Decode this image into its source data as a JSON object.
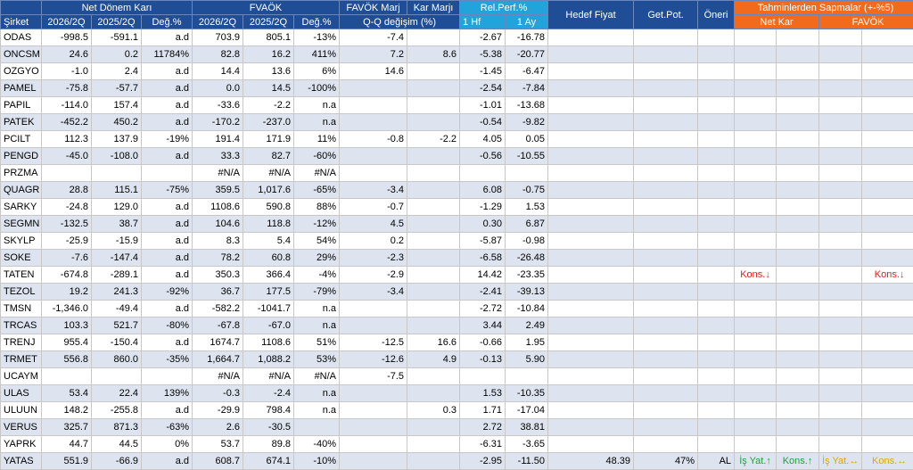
{
  "headers": {
    "sirket": "Şirket",
    "net_donem_kari": "Net Dönem Karı",
    "favok": "FVAÖK",
    "favok_marj": "FAVÖK Marj",
    "kar_marji": "Kar Marjı",
    "rel_perf": "Rel.Perf.%",
    "hedef_fiyat": "Hedef Fiyat",
    "get_pot": "Get.Pot.",
    "oneri": "Öneri",
    "tahmin": "Tahminlerden Sapmalar (+-%5)",
    "sub_net_kar": "Net Kar",
    "sub_favok": "FAVÖK",
    "c_2026": "2026/2Q",
    "c_2025": "2025/2Q",
    "c_deg": "Değ.%",
    "c_qq": "Q-Q değişim (%)",
    "c_1hf": "1 Hf",
    "c_1ay": "1 Ay"
  },
  "rows": [
    {
      "name": "ODAS",
      "n1": "-998.5",
      "n2": "-591.1",
      "nd": "a.d",
      "f1": "703.9",
      "f2": "805.1",
      "fd": "-13%",
      "fm": "-7.4",
      "km": "",
      "h": "-2.67",
      "a": "-16.78",
      "hf": "",
      "gp": "",
      "on": "",
      "t1": "",
      "t2": "",
      "t3": "",
      "t4": ""
    },
    {
      "name": "ONCSM",
      "n1": "24.6",
      "n2": "0.2",
      "nd": "11784%",
      "f1": "82.8",
      "f2": "16.2",
      "fd": "411%",
      "fm": "7.2",
      "km": "8.6",
      "h": "-5.38",
      "a": "-20.77",
      "hf": "",
      "gp": "",
      "on": "",
      "t1": "",
      "t2": "",
      "t3": "",
      "t4": ""
    },
    {
      "name": "OZGYO",
      "n1": "-1.0",
      "n2": "2.4",
      "nd": "a.d",
      "f1": "14.4",
      "f2": "13.6",
      "fd": "6%",
      "fm": "14.6",
      "km": "",
      "h": "-1.45",
      "a": "-6.47",
      "hf": "",
      "gp": "",
      "on": "",
      "t1": "",
      "t2": "",
      "t3": "",
      "t4": ""
    },
    {
      "name": "PAMEL",
      "n1": "-75.8",
      "n2": "-57.7",
      "nd": "a.d",
      "f1": "0.0",
      "f2": "14.5",
      "fd": "-100%",
      "fm": "",
      "km": "",
      "h": "-2.54",
      "a": "-7.84",
      "hf": "",
      "gp": "",
      "on": "",
      "t1": "",
      "t2": "",
      "t3": "",
      "t4": ""
    },
    {
      "name": "PAPIL",
      "n1": "-114.0",
      "n2": "157.4",
      "nd": "a.d",
      "f1": "-33.6",
      "f2": "-2.2",
      "fd": "n.a",
      "fm": "",
      "km": "",
      "h": "-1.01",
      "a": "-13.68",
      "hf": "",
      "gp": "",
      "on": "",
      "t1": "",
      "t2": "",
      "t3": "",
      "t4": ""
    },
    {
      "name": "PATEK",
      "n1": "-452.2",
      "n2": "450.2",
      "nd": "a.d",
      "f1": "-170.2",
      "f2": "-237.0",
      "fd": "n.a",
      "fm": "",
      "km": "",
      "h": "-0.54",
      "a": "-9.82",
      "hf": "",
      "gp": "",
      "on": "",
      "t1": "",
      "t2": "",
      "t3": "",
      "t4": ""
    },
    {
      "name": "PCILT",
      "n1": "112.3",
      "n2": "137.9",
      "nd": "-19%",
      "f1": "191.4",
      "f2": "171.9",
      "fd": "11%",
      "fm": "-0.8",
      "km": "-2.2",
      "h": "4.05",
      "a": "0.05",
      "hf": "",
      "gp": "",
      "on": "",
      "t1": "",
      "t2": "",
      "t3": "",
      "t4": ""
    },
    {
      "name": "PENGD",
      "n1": "-45.0",
      "n2": "-108.0",
      "nd": "a.d",
      "f1": "33.3",
      "f2": "82.7",
      "fd": "-60%",
      "fm": "",
      "km": "",
      "h": "-0.56",
      "a": "-10.55",
      "hf": "",
      "gp": "",
      "on": "",
      "t1": "",
      "t2": "",
      "t3": "",
      "t4": ""
    },
    {
      "name": "PRZMA",
      "n1": "",
      "n2": "",
      "nd": "",
      "f1": "#N/A",
      "f2": "#N/A",
      "fd": "#N/A",
      "fm": "",
      "km": "",
      "h": "",
      "a": "",
      "hf": "",
      "gp": "",
      "on": "",
      "t1": "",
      "t2": "",
      "t3": "",
      "t4": ""
    },
    {
      "name": "QUAGR",
      "n1": "28.8",
      "n2": "115.1",
      "nd": "-75%",
      "f1": "359.5",
      "f2": "1,017.6",
      "fd": "-65%",
      "fm": "-3.4",
      "km": "",
      "h": "6.08",
      "a": "-0.75",
      "hf": "",
      "gp": "",
      "on": "",
      "t1": "",
      "t2": "",
      "t3": "",
      "t4": ""
    },
    {
      "name": "SARKY",
      "n1": "-24.8",
      "n2": "129.0",
      "nd": "a.d",
      "f1": "1108.6",
      "f2": "590.8",
      "fd": "88%",
      "fm": "-0.7",
      "km": "",
      "h": "-1.29",
      "a": "1.53",
      "hf": "",
      "gp": "",
      "on": "",
      "t1": "",
      "t2": "",
      "t3": "",
      "t4": ""
    },
    {
      "name": "SEGMN",
      "n1": "-132.5",
      "n2": "38.7",
      "nd": "a.d",
      "f1": "104.6",
      "f2": "118.8",
      "fd": "-12%",
      "fm": "4.5",
      "km": "",
      "h": "0.30",
      "a": "6.87",
      "hf": "",
      "gp": "",
      "on": "",
      "t1": "",
      "t2": "",
      "t3": "",
      "t4": ""
    },
    {
      "name": "SKYLP",
      "n1": "-25.9",
      "n2": "-15.9",
      "nd": "a.d",
      "f1": "8.3",
      "f2": "5.4",
      "fd": "54%",
      "fm": "0.2",
      "km": "",
      "h": "-5.87",
      "a": "-0.98",
      "hf": "",
      "gp": "",
      "on": "",
      "t1": "",
      "t2": "",
      "t3": "",
      "t4": ""
    },
    {
      "name": "SOKE",
      "n1": "-7.6",
      "n2": "-147.4",
      "nd": "a.d",
      "f1": "78.2",
      "f2": "60.8",
      "fd": "29%",
      "fm": "-2.3",
      "km": "",
      "h": "-6.58",
      "a": "-26.48",
      "hf": "",
      "gp": "",
      "on": "",
      "t1": "",
      "t2": "",
      "t3": "",
      "t4": ""
    },
    {
      "name": "TATEN",
      "n1": "-674.8",
      "n2": "-289.1",
      "nd": "a.d",
      "f1": "350.3",
      "f2": "366.4",
      "fd": "-4%",
      "fm": "-2.9",
      "km": "",
      "h": "14.42",
      "a": "-23.35",
      "hf": "",
      "gp": "",
      "on": "",
      "t1": "Kons.↓",
      "t2": "",
      "t3": "",
      "t4": "Kons.↓"
    },
    {
      "name": "TEZOL",
      "n1": "19.2",
      "n2": "241.3",
      "nd": "-92%",
      "f1": "36.7",
      "f2": "177.5",
      "fd": "-79%",
      "fm": "-3.4",
      "km": "",
      "h": "-2.41",
      "a": "-39.13",
      "hf": "",
      "gp": "",
      "on": "",
      "t1": "",
      "t2": "",
      "t3": "",
      "t4": ""
    },
    {
      "name": "TMSN",
      "n1": "-1,346.0",
      "n2": "-49.4",
      "nd": "a.d",
      "f1": "-582.2",
      "f2": "-1041.7",
      "fd": "n.a",
      "fm": "",
      "km": "",
      "h": "-2.72",
      "a": "-10.84",
      "hf": "",
      "gp": "",
      "on": "",
      "t1": "",
      "t2": "",
      "t3": "",
      "t4": ""
    },
    {
      "name": "TRCAS",
      "n1": "103.3",
      "n2": "521.7",
      "nd": "-80%",
      "f1": "-67.8",
      "f2": "-67.0",
      "fd": "n.a",
      "fm": "",
      "km": "",
      "h": "3.44",
      "a": "2.49",
      "hf": "",
      "gp": "",
      "on": "",
      "t1": "",
      "t2": "",
      "t3": "",
      "t4": ""
    },
    {
      "name": "TRENJ",
      "n1": "955.4",
      "n2": "-150.4",
      "nd": "a.d",
      "f1": "1674.7",
      "f2": "1108.6",
      "fd": "51%",
      "fm": "-12.5",
      "km": "16.6",
      "h": "-0.66",
      "a": "1.95",
      "hf": "",
      "gp": "",
      "on": "",
      "t1": "",
      "t2": "",
      "t3": "",
      "t4": ""
    },
    {
      "name": "TRMET",
      "n1": "556.8",
      "n2": "860.0",
      "nd": "-35%",
      "f1": "1,664.7",
      "f2": "1,088.2",
      "fd": "53%",
      "fm": "-12.6",
      "km": "4.9",
      "h": "-0.13",
      "a": "5.90",
      "hf": "",
      "gp": "",
      "on": "",
      "t1": "",
      "t2": "",
      "t3": "",
      "t4": ""
    },
    {
      "name": "UCAYM",
      "n1": "",
      "n2": "",
      "nd": "",
      "f1": "#N/A",
      "f2": "#N/A",
      "fd": "#N/A",
      "fm": "-7.5",
      "km": "",
      "h": "",
      "a": "",
      "hf": "",
      "gp": "",
      "on": "",
      "t1": "",
      "t2": "",
      "t3": "",
      "t4": ""
    },
    {
      "name": "ULAS",
      "n1": "53.4",
      "n2": "22.4",
      "nd": "139%",
      "f1": "-0.3",
      "f2": "-2.4",
      "fd": "n.a",
      "fm": "",
      "km": "",
      "h": "1.53",
      "a": "-10.35",
      "hf": "",
      "gp": "",
      "on": "",
      "t1": "",
      "t2": "",
      "t3": "",
      "t4": ""
    },
    {
      "name": "ULUUN",
      "n1": "148.2",
      "n2": "-255.8",
      "nd": "a.d",
      "f1": "-29.9",
      "f2": "798.4",
      "fd": "n.a",
      "fm": "",
      "km": "0.3",
      "h": "1.71",
      "a": "-17.04",
      "hf": "",
      "gp": "",
      "on": "",
      "t1": "",
      "t2": "",
      "t3": "",
      "t4": ""
    },
    {
      "name": "VERUS",
      "n1": "325.7",
      "n2": "871.3",
      "nd": "-63%",
      "f1": "2.6",
      "f2": "-30.5",
      "fd": "",
      "fm": "",
      "km": "",
      "h": "2.72",
      "a": "38.81",
      "hf": "",
      "gp": "",
      "on": "",
      "t1": "",
      "t2": "",
      "t3": "",
      "t4": ""
    },
    {
      "name": "YAPRK",
      "n1": "44.7",
      "n2": "44.5",
      "nd": "0%",
      "f1": "53.7",
      "f2": "89.8",
      "fd": "-40%",
      "fm": "",
      "km": "",
      "h": "-6.31",
      "a": "-3.65",
      "hf": "",
      "gp": "",
      "on": "",
      "t1": "",
      "t2": "",
      "t3": "",
      "t4": ""
    },
    {
      "name": "YATAS",
      "n1": "551.9",
      "n2": "-66.9",
      "nd": "a.d",
      "f1": "608.7",
      "f2": "674.1",
      "fd": "-10%",
      "fm": "",
      "km": "",
      "h": "-2.95",
      "a": "-11.50",
      "hf": "48.39",
      "gp": "47%",
      "on": "AL",
      "t1": "İş Yat.↑",
      "t2": "Kons.↑",
      "t3": "İş Yat.↔",
      "t4": "Kons.↔"
    }
  ]
}
